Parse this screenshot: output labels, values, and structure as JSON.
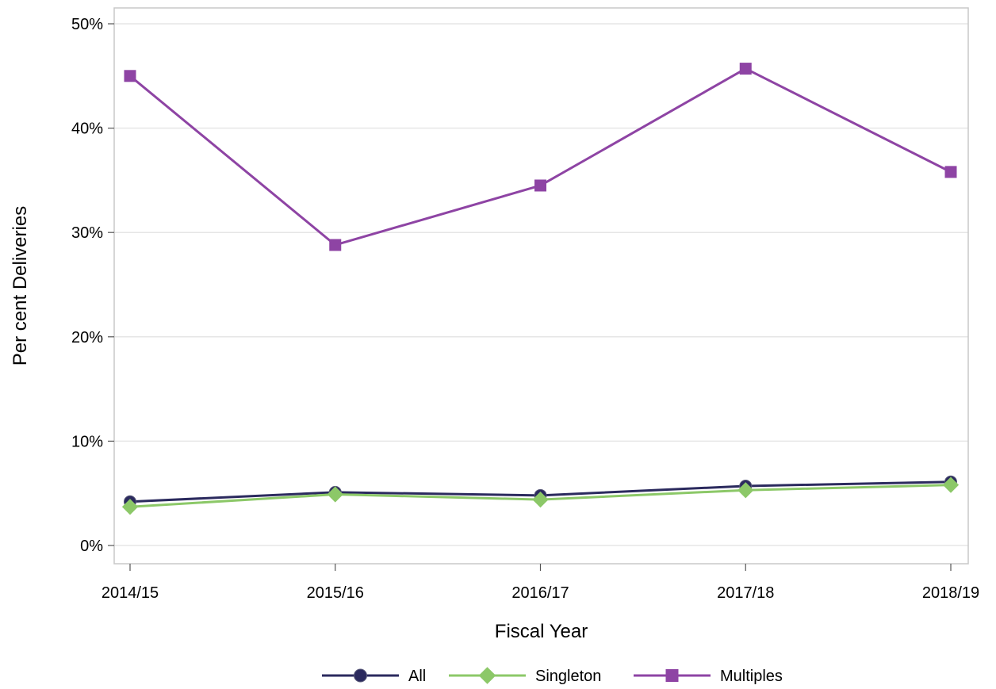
{
  "chart_data": {
    "type": "line",
    "title": "",
    "xlabel": "Fiscal Year",
    "ylabel": "Per cent Deliveries",
    "categories": [
      "2014/15",
      "2015/16",
      "2016/17",
      "2017/18",
      "2018/19"
    ],
    "yticks": [
      "0%",
      "10%",
      "20%",
      "30%",
      "40%",
      "50%"
    ],
    "ylim": [
      0,
      50
    ],
    "grid": "horizontal",
    "legend_position": "bottom",
    "series": [
      {
        "name": "All",
        "values": [
          4.2,
          5.1,
          4.8,
          5.7,
          6.1
        ],
        "color": "#2b2a5e",
        "marker": "circle"
      },
      {
        "name": "Singleton",
        "values": [
          3.7,
          4.9,
          4.4,
          5.3,
          5.8
        ],
        "color": "#8cc868",
        "marker": "diamond"
      },
      {
        "name": "Multiples",
        "values": [
          45.0,
          28.8,
          34.5,
          45.7,
          35.8
        ],
        "color": "#8e44a4",
        "marker": "square"
      }
    ]
  }
}
